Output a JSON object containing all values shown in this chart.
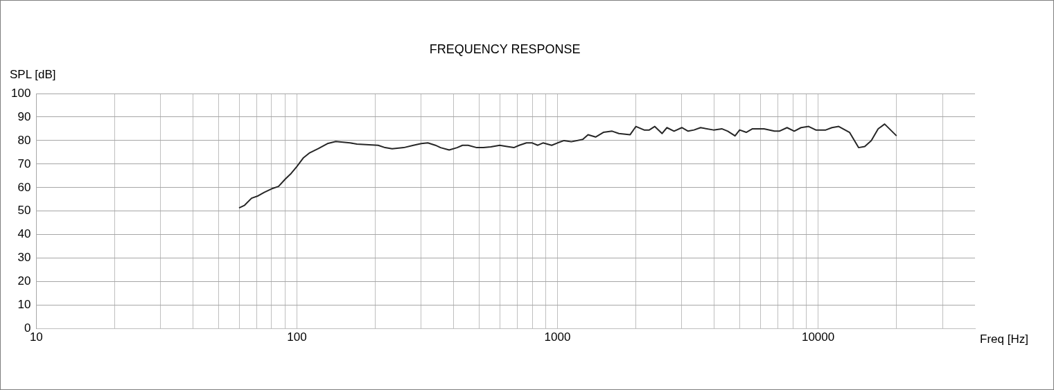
{
  "chart_data": {
    "type": "line",
    "title": "FREQUENCY RESPONSE",
    "xlabel": "Freq [Hz]",
    "ylabel": "SPL [dB]",
    "log": "x",
    "grid": true,
    "legend": false,
    "marker": "none",
    "line_style": "solid",
    "xlim": [
      10,
      40000
    ],
    "xticks": [
      10,
      {
        "value": 20,
        "label": null
      },
      {
        "value": 30,
        "label": null
      },
      {
        "value": 40,
        "label": null
      },
      {
        "value": 50,
        "label": null
      },
      {
        "value": 60,
        "label": null
      },
      {
        "value": 70,
        "label": null
      },
      {
        "value": 80,
        "label": null
      },
      {
        "value": 90,
        "label": null
      },
      100,
      {
        "value": 200,
        "label": null
      },
      {
        "value": 300,
        "label": null
      },
      {
        "value": 400,
        "label": null
      },
      {
        "value": 500,
        "label": null
      },
      {
        "value": 600,
        "label": null
      },
      {
        "value": 700,
        "label": null
      },
      {
        "value": 800,
        "label": null
      },
      {
        "value": 900,
        "label": null
      },
      1000,
      {
        "value": 2000,
        "label": null
      },
      {
        "value": 3000,
        "label": null
      },
      {
        "value": 4000,
        "label": null
      },
      {
        "value": 5000,
        "label": null
      },
      {
        "value": 6000,
        "label": null
      },
      {
        "value": 7000,
        "label": null
      },
      {
        "value": 8000,
        "label": null
      },
      {
        "value": 9000,
        "label": null
      },
      10000,
      {
        "value": 20000,
        "label": null
      },
      {
        "value": 30000,
        "label": null
      }
    ],
    "ylim": [
      0,
      100
    ],
    "yticks": [
      0,
      10,
      20,
      30,
      40,
      50,
      60,
      70,
      80,
      90,
      100
    ],
    "x": [
      60,
      63,
      67,
      71,
      75,
      80,
      85,
      90,
      95,
      100,
      106,
      112,
      121,
      131,
      141,
      160,
      170,
      205,
      218,
      232,
      257,
      280,
      300,
      318,
      340,
      356,
      384,
      412,
      432,
      454,
      490,
      520,
      555,
      600,
      640,
      680,
      713,
      760,
      800,
      840,
      880,
      950,
      1000,
      1060,
      1130,
      1250,
      1310,
      1400,
      1500,
      1620,
      1720,
      1900,
      2000,
      2150,
      2250,
      2360,
      2520,
      2630,
      2800,
      3000,
      3170,
      3340,
      3540,
      3970,
      4270,
      4500,
      4800,
      5000,
      5300,
      5600,
      6200,
      6800,
      7100,
      7600,
      8100,
      8600,
      9200,
      9800,
      10100,
      10700,
      11300,
      12000,
      13200,
      14300,
      15100,
      16000,
      17000,
      18000,
      20000
    ],
    "series": [
      {
        "color": "#262626",
        "values": [
          51.4,
          52.5,
          55.5,
          56.5,
          58,
          59.5,
          60.5,
          63.5,
          66,
          69,
          72.7,
          74.8,
          76.6,
          78.7,
          79.6,
          79,
          78.5,
          78,
          77,
          76.5,
          77,
          78,
          78.7,
          79,
          78,
          77,
          76,
          77,
          78,
          78,
          77,
          77,
          77.3,
          78,
          77.5,
          77,
          78,
          79,
          79,
          78,
          79,
          78,
          79,
          80,
          79.5,
          80.5,
          82.5,
          81.5,
          83.5,
          84,
          83,
          82.5,
          86,
          84.5,
          84.5,
          86,
          83,
          85.5,
          84,
          85.5,
          84,
          84.5,
          85.5,
          84.5,
          85,
          84,
          82,
          84.5,
          83.5,
          85,
          85,
          84,
          84,
          85.5,
          84,
          85.5,
          86,
          84.5,
          84.5,
          84.5,
          85.5,
          86,
          83.5,
          77,
          77.5,
          80,
          85,
          87,
          82
        ]
      }
    ]
  }
}
